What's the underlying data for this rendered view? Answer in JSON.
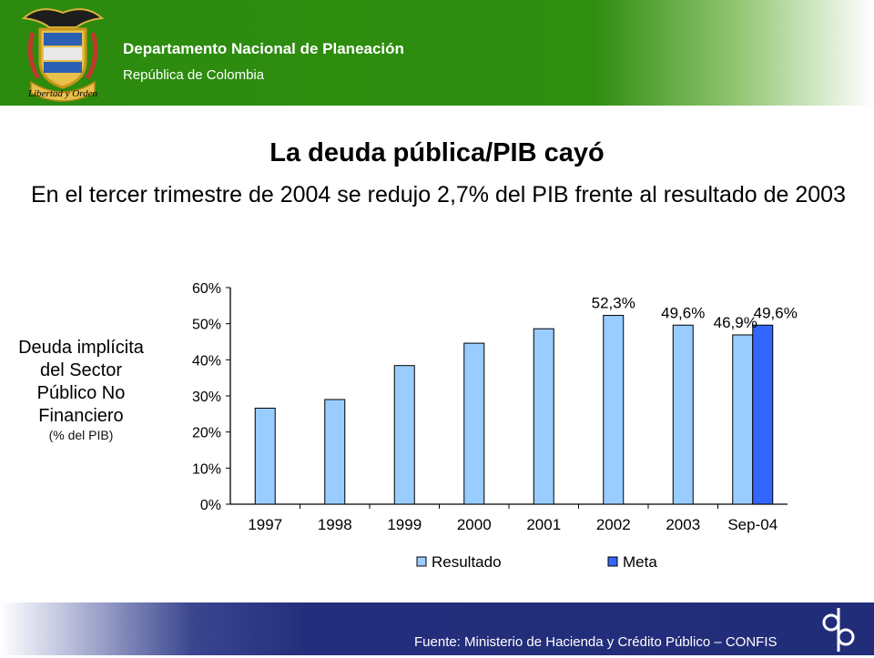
{
  "header": {
    "org_name": "Departamento Nacional de Planeación",
    "country": "República de Colombia",
    "motto": "Libertad y Orden",
    "logo_icon": "colombia-coat-of-arms-icon"
  },
  "slide": {
    "title": "La deuda pública/PIB cayó",
    "subtitle": "En el tercer trimestre de 2004 se redujo 2,7% del PIB frente al resultado de 2003"
  },
  "side_label": {
    "text": "Deuda implícita del Sector Público No Financiero",
    "unit": "(% del PIB)"
  },
  "chart_data": {
    "type": "bar",
    "categories": [
      "1997",
      "1998",
      "1999",
      "2000",
      "2001",
      "2002",
      "2003",
      "Sep-04"
    ],
    "series": [
      {
        "name": "Resultado",
        "color": "#99ccff",
        "values": [
          26.6,
          29.0,
          38.4,
          44.6,
          48.6,
          52.3,
          49.6,
          46.9
        ]
      },
      {
        "name": "Meta",
        "color": "#3366ff",
        "values": [
          null,
          null,
          null,
          null,
          null,
          null,
          null,
          49.6
        ]
      }
    ],
    "data_labels": [
      {
        "category": "2002",
        "series": "Resultado",
        "text": "52,3%"
      },
      {
        "category": "2003",
        "series": "Resultado",
        "text": "49,6%"
      },
      {
        "category": "Sep-04",
        "series": "Resultado",
        "text": "46,9%"
      },
      {
        "category": "Sep-04",
        "series": "Meta",
        "text": "49,6%"
      }
    ],
    "y_ticks": [
      "0%",
      "10%",
      "20%",
      "30%",
      "40%",
      "50%",
      "60%"
    ],
    "ylim": [
      0,
      60
    ],
    "grid": false,
    "legend_position": "bottom"
  },
  "footer": {
    "source": "Fuente: Ministerio de Hacienda y Crédito Público – CONFIS",
    "logo_icon": "dnp-logo-icon"
  }
}
